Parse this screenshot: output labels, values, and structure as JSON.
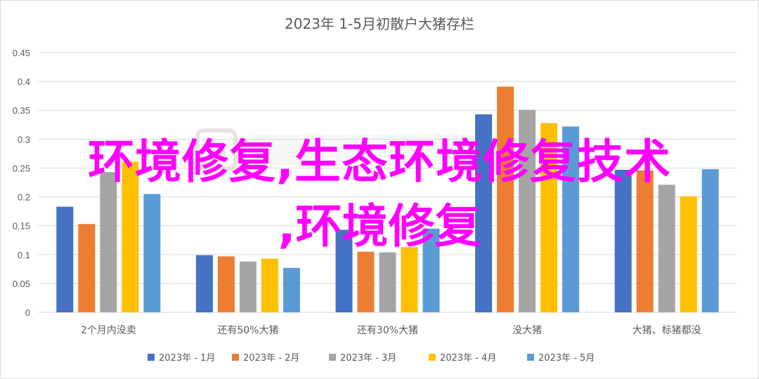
{
  "chart_data": {
    "type": "bar",
    "title": "2023年 1-5月初散户大猪存栏",
    "categories": [
      "2个月内没卖",
      "还有50%大猪",
      "还有30%大猪",
      "没大猪",
      "大猪、标猪都没"
    ],
    "series": [
      {
        "name": "2023年 - 1月",
        "color": "#4472c4",
        "values": [
          0.183,
          0.099,
          0.143,
          0.343,
          0.247
        ]
      },
      {
        "name": "2023年 - 2月",
        "color": "#ed7d31",
        "values": [
          0.153,
          0.097,
          0.105,
          0.391,
          0.246
        ]
      },
      {
        "name": "2023年 - 3月",
        "color": "#a5a5a5",
        "values": [
          0.243,
          0.088,
          0.104,
          0.351,
          0.221
        ]
      },
      {
        "name": "2023年 - 4月",
        "color": "#ffc000",
        "values": [
          0.261,
          0.093,
          0.113,
          0.328,
          0.201
        ]
      },
      {
        "name": "2023年 - 5月",
        "color": "#5b9bd5",
        "values": [
          0.205,
          0.077,
          0.145,
          0.322,
          0.248
        ]
      }
    ],
    "ylim": [
      0,
      0.45
    ],
    "yticks": [
      "0",
      "0.05",
      "0.1",
      "0.15",
      "0.2",
      "0.25",
      "0.3",
      "0.35",
      "0.4",
      "0.45"
    ],
    "grid": true,
    "legend_position": "bottom"
  },
  "overlay": {
    "line1": "环境修复,生态环境修复技术",
    "line2": ",环境修复"
  },
  "colors": {
    "overlay_text": "#ff00ff",
    "gridline": "#d9d9d9",
    "axis_text": "#595959"
  }
}
